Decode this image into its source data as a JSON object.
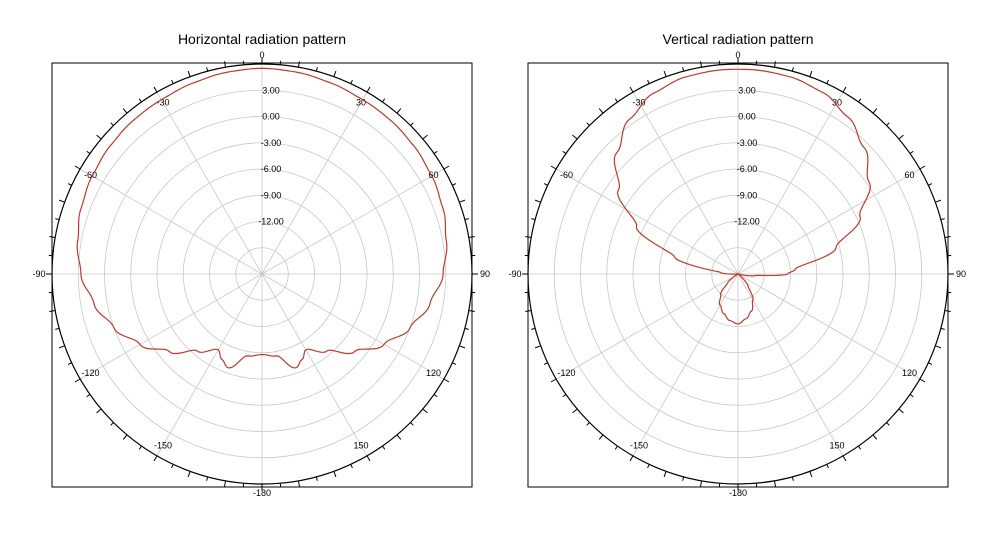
{
  "chart_data": [
    {
      "type": "polar",
      "title": "Horizontal radiation pattern",
      "ring_labels": [
        "3.00",
        "0.00",
        "-3.00",
        "-6.00",
        "-9.00",
        "-12.00"
      ],
      "angle_labels": [
        "0",
        "30",
        "60",
        "90",
        "120",
        "150",
        "-180",
        "-150",
        "-120",
        "-90",
        "-60",
        "-30"
      ],
      "r_max_dB": 6,
      "r_min_dB": -18,
      "grid": true,
      "line_color": "#c0392b",
      "series": [
        {
          "angles_deg": [
            -180,
            -170,
            -160,
            -155,
            -150,
            -140,
            -130,
            -120,
            -110,
            -100,
            -90,
            -80,
            -70,
            -60,
            -50,
            -40,
            -30,
            -20,
            -10,
            0,
            10,
            20,
            30,
            40,
            50,
            60,
            70,
            80,
            90,
            100,
            110,
            120,
            130,
            140,
            150,
            155,
            160,
            170,
            180
          ],
          "gain_dB": [
            -8.8,
            -8.5,
            -6.6,
            -7.2,
            -8.0,
            -6.5,
            -4.2,
            -1.9,
            0.0,
            1.5,
            2.7,
            3.4,
            4.0,
            4.4,
            4.7,
            4.9,
            5.0,
            5.2,
            5.4,
            5.5,
            5.4,
            5.2,
            5.0,
            4.9,
            4.7,
            4.4,
            4.0,
            3.4,
            2.7,
            1.5,
            0.0,
            -1.9,
            -4.2,
            -6.5,
            -8.0,
            -7.2,
            -6.6,
            -8.5,
            -8.8
          ]
        }
      ]
    },
    {
      "type": "polar",
      "title": "Vertical radiation pattern",
      "ring_labels": [
        "3.00",
        "0.00",
        "-3.00",
        "-6.00",
        "-9.00",
        "-12.00"
      ],
      "angle_labels": [
        "0",
        "30",
        "60",
        "90",
        "120",
        "150",
        "-180",
        "-150",
        "-120",
        "-90",
        "-60",
        "-30"
      ],
      "r_max_dB": 6,
      "r_min_dB": -18,
      "grid": true,
      "line_color": "#c0392b",
      "series": [
        {
          "angles_deg": [
            -180,
            -170,
            -160,
            -150,
            -140,
            -130,
            -120,
            -105,
            -95,
            -85,
            -75,
            -65,
            -55,
            -45,
            -35,
            -25,
            -15,
            -5,
            0,
            5,
            15,
            25,
            35,
            45,
            55,
            65,
            75,
            85,
            90,
            95,
            105,
            120,
            130,
            140,
            150,
            160,
            170,
            180
          ],
          "gain_dB": [
            -12.3,
            -12.6,
            -13.2,
            -13.9,
            -14.9,
            -16.5,
            -18.0,
            -18.0,
            -18.0,
            -16.0,
            -10.5,
            -5.2,
            -1.3,
            1.6,
            3.6,
            4.8,
            5.3,
            5.4,
            5.4,
            5.4,
            5.3,
            4.9,
            3.9,
            2.4,
            0.3,
            -2.6,
            -6.4,
            -11.4,
            -12.3,
            -16.0,
            -18.0,
            -18.0,
            -17.5,
            -16.2,
            -14.6,
            -13.5,
            -12.8,
            -12.3
          ]
        }
      ]
    }
  ]
}
